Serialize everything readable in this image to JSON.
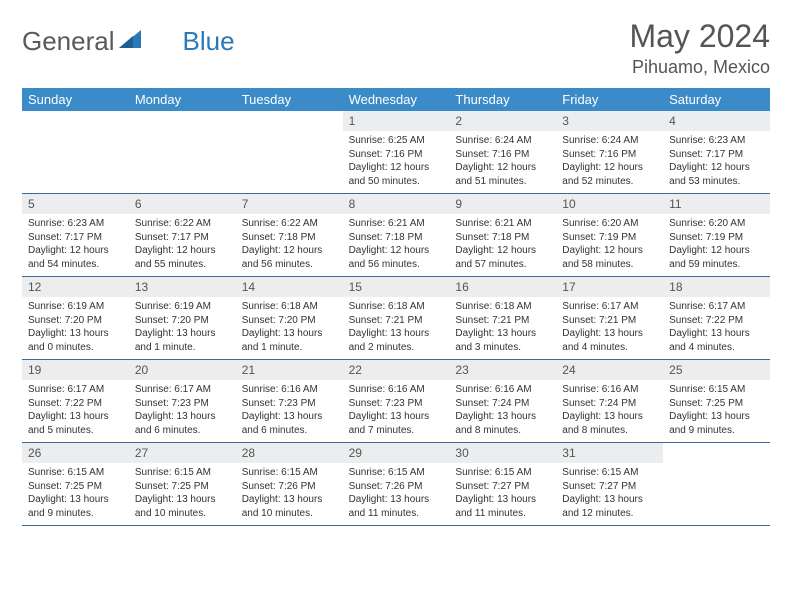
{
  "brand": {
    "part1": "General",
    "part2": "Blue"
  },
  "title": "May 2024",
  "location": "Pihuamo, Mexico",
  "colors": {
    "header_bg": "#3b8bc9",
    "header_text": "#ffffff",
    "daynum_bg": "#ebedef",
    "border": "#3b6a94",
    "brand_gray": "#5a5a5a",
    "brand_blue": "#2a7ab9"
  },
  "dayNames": [
    "Sunday",
    "Monday",
    "Tuesday",
    "Wednesday",
    "Thursday",
    "Friday",
    "Saturday"
  ],
  "weeks": [
    [
      {
        "empty": true
      },
      {
        "empty": true
      },
      {
        "empty": true
      },
      {
        "day": "1",
        "sunrise": "Sunrise: 6:25 AM",
        "sunset": "Sunset: 7:16 PM",
        "daylight1": "Daylight: 12 hours",
        "daylight2": "and 50 minutes."
      },
      {
        "day": "2",
        "sunrise": "Sunrise: 6:24 AM",
        "sunset": "Sunset: 7:16 PM",
        "daylight1": "Daylight: 12 hours",
        "daylight2": "and 51 minutes."
      },
      {
        "day": "3",
        "sunrise": "Sunrise: 6:24 AM",
        "sunset": "Sunset: 7:16 PM",
        "daylight1": "Daylight: 12 hours",
        "daylight2": "and 52 minutes."
      },
      {
        "day": "4",
        "sunrise": "Sunrise: 6:23 AM",
        "sunset": "Sunset: 7:17 PM",
        "daylight1": "Daylight: 12 hours",
        "daylight2": "and 53 minutes."
      }
    ],
    [
      {
        "day": "5",
        "sunrise": "Sunrise: 6:23 AM",
        "sunset": "Sunset: 7:17 PM",
        "daylight1": "Daylight: 12 hours",
        "daylight2": "and 54 minutes."
      },
      {
        "day": "6",
        "sunrise": "Sunrise: 6:22 AM",
        "sunset": "Sunset: 7:17 PM",
        "daylight1": "Daylight: 12 hours",
        "daylight2": "and 55 minutes."
      },
      {
        "day": "7",
        "sunrise": "Sunrise: 6:22 AM",
        "sunset": "Sunset: 7:18 PM",
        "daylight1": "Daylight: 12 hours",
        "daylight2": "and 56 minutes."
      },
      {
        "day": "8",
        "sunrise": "Sunrise: 6:21 AM",
        "sunset": "Sunset: 7:18 PM",
        "daylight1": "Daylight: 12 hours",
        "daylight2": "and 56 minutes."
      },
      {
        "day": "9",
        "sunrise": "Sunrise: 6:21 AM",
        "sunset": "Sunset: 7:18 PM",
        "daylight1": "Daylight: 12 hours",
        "daylight2": "and 57 minutes."
      },
      {
        "day": "10",
        "sunrise": "Sunrise: 6:20 AM",
        "sunset": "Sunset: 7:19 PM",
        "daylight1": "Daylight: 12 hours",
        "daylight2": "and 58 minutes."
      },
      {
        "day": "11",
        "sunrise": "Sunrise: 6:20 AM",
        "sunset": "Sunset: 7:19 PM",
        "daylight1": "Daylight: 12 hours",
        "daylight2": "and 59 minutes."
      }
    ],
    [
      {
        "day": "12",
        "sunrise": "Sunrise: 6:19 AM",
        "sunset": "Sunset: 7:20 PM",
        "daylight1": "Daylight: 13 hours",
        "daylight2": "and 0 minutes."
      },
      {
        "day": "13",
        "sunrise": "Sunrise: 6:19 AM",
        "sunset": "Sunset: 7:20 PM",
        "daylight1": "Daylight: 13 hours",
        "daylight2": "and 1 minute."
      },
      {
        "day": "14",
        "sunrise": "Sunrise: 6:18 AM",
        "sunset": "Sunset: 7:20 PM",
        "daylight1": "Daylight: 13 hours",
        "daylight2": "and 1 minute."
      },
      {
        "day": "15",
        "sunrise": "Sunrise: 6:18 AM",
        "sunset": "Sunset: 7:21 PM",
        "daylight1": "Daylight: 13 hours",
        "daylight2": "and 2 minutes."
      },
      {
        "day": "16",
        "sunrise": "Sunrise: 6:18 AM",
        "sunset": "Sunset: 7:21 PM",
        "daylight1": "Daylight: 13 hours",
        "daylight2": "and 3 minutes."
      },
      {
        "day": "17",
        "sunrise": "Sunrise: 6:17 AM",
        "sunset": "Sunset: 7:21 PM",
        "daylight1": "Daylight: 13 hours",
        "daylight2": "and 4 minutes."
      },
      {
        "day": "18",
        "sunrise": "Sunrise: 6:17 AM",
        "sunset": "Sunset: 7:22 PM",
        "daylight1": "Daylight: 13 hours",
        "daylight2": "and 4 minutes."
      }
    ],
    [
      {
        "day": "19",
        "sunrise": "Sunrise: 6:17 AM",
        "sunset": "Sunset: 7:22 PM",
        "daylight1": "Daylight: 13 hours",
        "daylight2": "and 5 minutes."
      },
      {
        "day": "20",
        "sunrise": "Sunrise: 6:17 AM",
        "sunset": "Sunset: 7:23 PM",
        "daylight1": "Daylight: 13 hours",
        "daylight2": "and 6 minutes."
      },
      {
        "day": "21",
        "sunrise": "Sunrise: 6:16 AM",
        "sunset": "Sunset: 7:23 PM",
        "daylight1": "Daylight: 13 hours",
        "daylight2": "and 6 minutes."
      },
      {
        "day": "22",
        "sunrise": "Sunrise: 6:16 AM",
        "sunset": "Sunset: 7:23 PM",
        "daylight1": "Daylight: 13 hours",
        "daylight2": "and 7 minutes."
      },
      {
        "day": "23",
        "sunrise": "Sunrise: 6:16 AM",
        "sunset": "Sunset: 7:24 PM",
        "daylight1": "Daylight: 13 hours",
        "daylight2": "and 8 minutes."
      },
      {
        "day": "24",
        "sunrise": "Sunrise: 6:16 AM",
        "sunset": "Sunset: 7:24 PM",
        "daylight1": "Daylight: 13 hours",
        "daylight2": "and 8 minutes."
      },
      {
        "day": "25",
        "sunrise": "Sunrise: 6:15 AM",
        "sunset": "Sunset: 7:25 PM",
        "daylight1": "Daylight: 13 hours",
        "daylight2": "and 9 minutes."
      }
    ],
    [
      {
        "day": "26",
        "sunrise": "Sunrise: 6:15 AM",
        "sunset": "Sunset: 7:25 PM",
        "daylight1": "Daylight: 13 hours",
        "daylight2": "and 9 minutes."
      },
      {
        "day": "27",
        "sunrise": "Sunrise: 6:15 AM",
        "sunset": "Sunset: 7:25 PM",
        "daylight1": "Daylight: 13 hours",
        "daylight2": "and 10 minutes."
      },
      {
        "day": "28",
        "sunrise": "Sunrise: 6:15 AM",
        "sunset": "Sunset: 7:26 PM",
        "daylight1": "Daylight: 13 hours",
        "daylight2": "and 10 minutes."
      },
      {
        "day": "29",
        "sunrise": "Sunrise: 6:15 AM",
        "sunset": "Sunset: 7:26 PM",
        "daylight1": "Daylight: 13 hours",
        "daylight2": "and 11 minutes."
      },
      {
        "day": "30",
        "sunrise": "Sunrise: 6:15 AM",
        "sunset": "Sunset: 7:27 PM",
        "daylight1": "Daylight: 13 hours",
        "daylight2": "and 11 minutes."
      },
      {
        "day": "31",
        "sunrise": "Sunrise: 6:15 AM",
        "sunset": "Sunset: 7:27 PM",
        "daylight1": "Daylight: 13 hours",
        "daylight2": "and 12 minutes."
      },
      {
        "empty": true
      }
    ]
  ]
}
